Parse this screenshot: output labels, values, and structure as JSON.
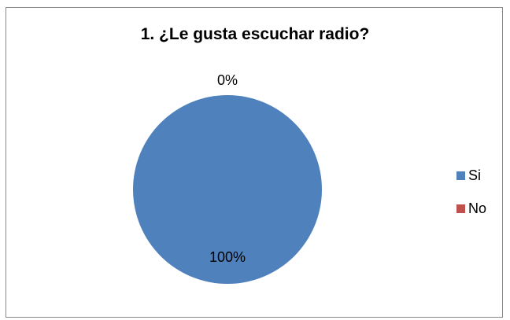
{
  "chart_data": {
    "type": "pie",
    "title": "1. ¿Le gusta escuchar radio?",
    "categories": [
      "Si",
      "No"
    ],
    "values": [
      100,
      0
    ],
    "data_labels": [
      "100%",
      "0%"
    ],
    "colors": [
      "#4f81bd",
      "#c0504d"
    ],
    "legend_position": "right"
  }
}
